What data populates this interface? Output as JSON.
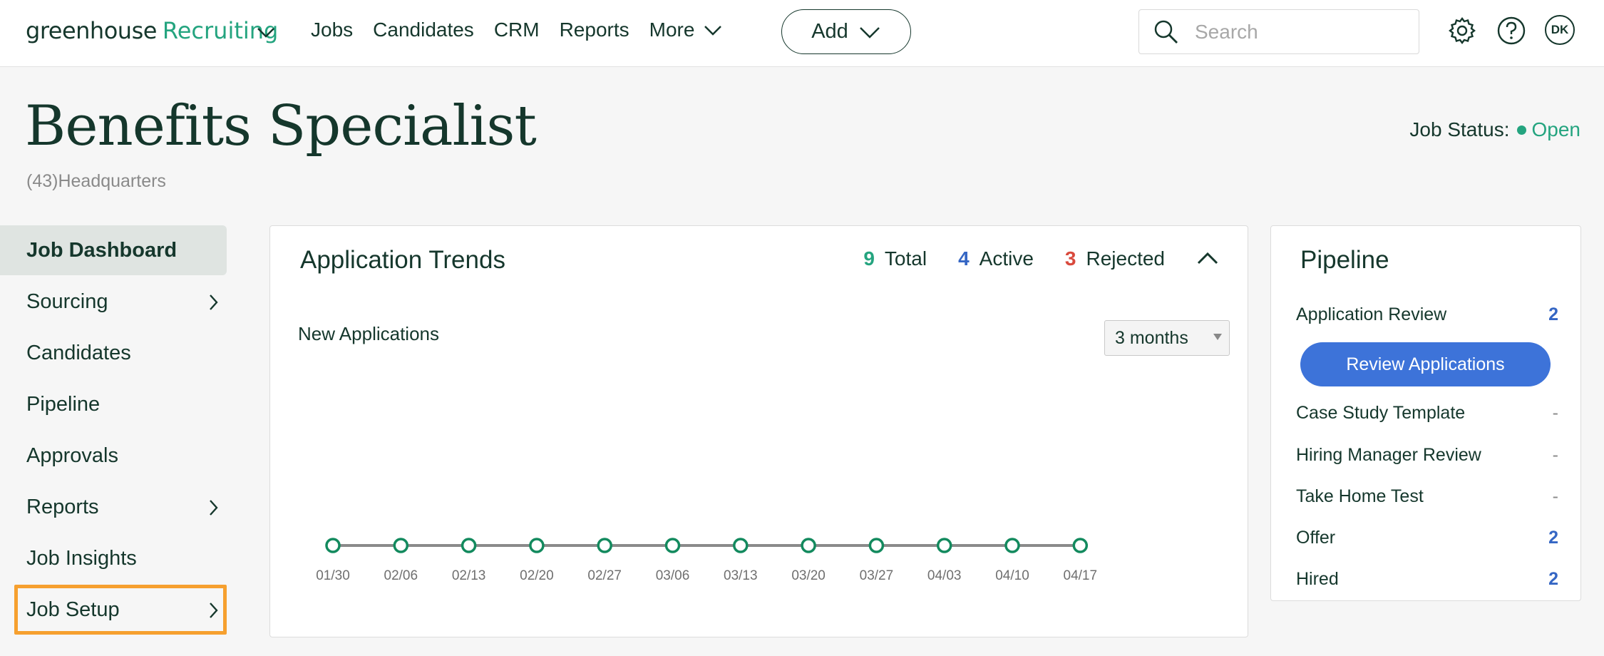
{
  "brand": {
    "name": "greenhouse",
    "product": "Recruiting"
  },
  "nav": {
    "jobs": "Jobs",
    "candidates": "Candidates",
    "crm": "CRM",
    "reports": "Reports",
    "more": "More"
  },
  "add_button": "Add",
  "search": {
    "placeholder": "Search"
  },
  "user": {
    "initials": "DK"
  },
  "job": {
    "title": "Benefits Specialist",
    "subtitle": "(43)Headquarters",
    "status_label": "Job Status:",
    "status_value": "Open"
  },
  "sidebar": {
    "items": [
      {
        "label": "Job Dashboard"
      },
      {
        "label": "Sourcing"
      },
      {
        "label": "Candidates"
      },
      {
        "label": "Pipeline"
      },
      {
        "label": "Approvals"
      },
      {
        "label": "Reports"
      },
      {
        "label": "Job Insights"
      },
      {
        "label": "Job Setup"
      }
    ]
  },
  "trends": {
    "title": "Application Trends",
    "total_value": "9",
    "total_label": "Total",
    "active_value": "4",
    "active_label": "Active",
    "rejected_value": "3",
    "rejected_label": "Rejected",
    "subtitle": "New Applications",
    "range": "3 months"
  },
  "chart_data": {
    "type": "line",
    "x": [
      "01/30",
      "02/06",
      "02/13",
      "02/20",
      "02/27",
      "03/06",
      "03/13",
      "03/20",
      "03/27",
      "04/03",
      "04/10",
      "04/17"
    ],
    "series": [
      {
        "values": [
          0,
          0,
          0,
          0,
          0,
          0,
          0,
          0,
          0,
          0,
          0,
          0
        ]
      }
    ],
    "ylim": [
      0,
      1
    ],
    "grid": false,
    "colors": {
      "line": "#8a8a8a",
      "marker": "#138a5e"
    }
  },
  "pipeline": {
    "title": "Pipeline",
    "review_button": "Review Applications",
    "stages": [
      {
        "label": "Application Review",
        "value": "2"
      },
      {
        "label": "Case Study Template",
        "value": "-"
      },
      {
        "label": "Hiring Manager Review",
        "value": "-"
      },
      {
        "label": "Take Home Test",
        "value": "-"
      },
      {
        "label": "Offer",
        "value": "2"
      },
      {
        "label": "Hired",
        "value": "2"
      }
    ]
  },
  "colors": {
    "brand_green": "#24a47f",
    "dark": "#15372c",
    "blue": "#3566c4",
    "red": "#d94a3d",
    "highlight": "#f6a02f"
  }
}
